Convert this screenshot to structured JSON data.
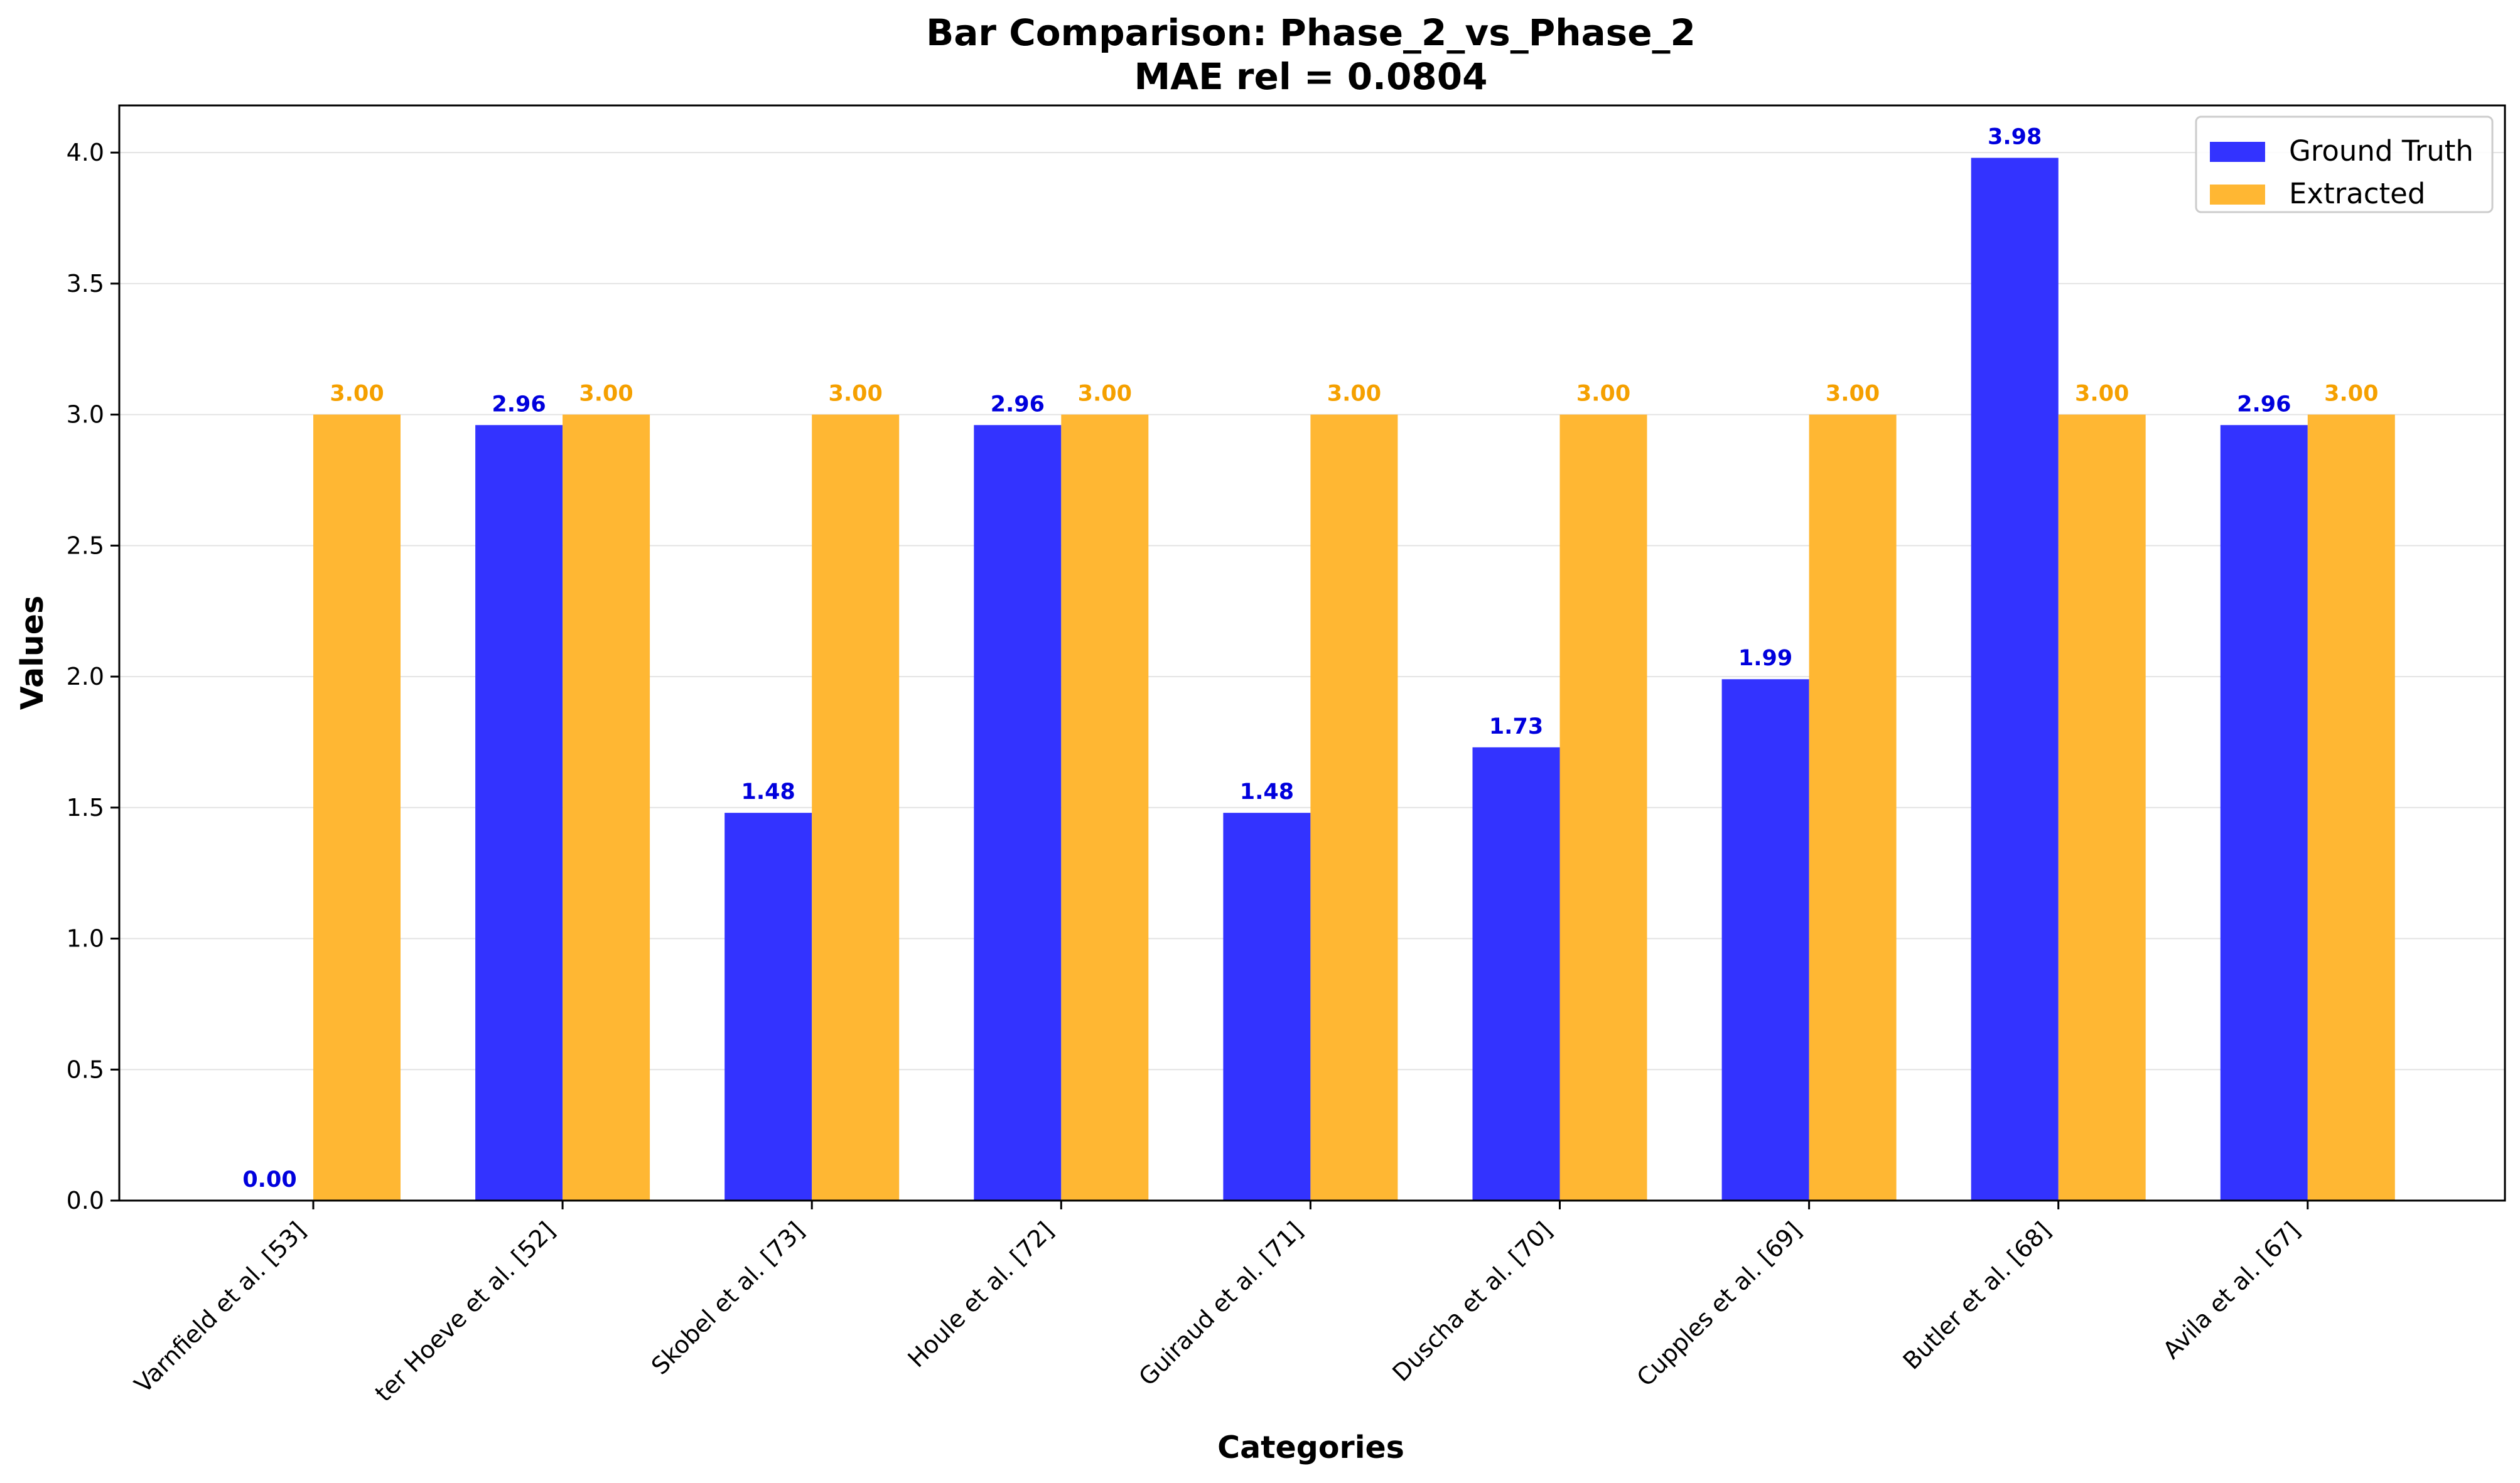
{
  "chart_data": {
    "type": "bar",
    "title": "Bar Comparison: Phase_2_vs_Phase_2",
    "subtitle": "MAE rel = 0.0804",
    "xlabel": "Categories",
    "ylabel": "Values",
    "ylim": [
      0,
      4.18
    ],
    "yticks": [
      "0.0",
      "0.5",
      "1.0",
      "1.5",
      "2.0",
      "2.5",
      "3.0",
      "3.5",
      "4.0"
    ],
    "grid": true,
    "legend_position": "top-right",
    "categories": [
      "Varnfield et al. [53]",
      "ter Hoeve et al. [52]",
      "Skobel et al. [73]",
      "Houle et al. [72]",
      "Guiraud et al. [71]",
      "Duscha et al. [70]",
      "Cupples et al. [69]",
      "Butler et al. [68]",
      "Avila et al. [67]"
    ],
    "series": [
      {
        "name": "Ground Truth",
        "color": "#3333ff",
        "label_color": "#0000dd",
        "values": [
          0.0,
          2.96,
          1.48,
          2.96,
          1.48,
          1.73,
          1.99,
          3.98,
          2.96
        ],
        "labels": [
          "0.00",
          "2.96",
          "1.48",
          "2.96",
          "1.48",
          "1.73",
          "1.99",
          "3.98",
          "2.96"
        ]
      },
      {
        "name": "Extracted",
        "color": "#ffb733",
        "label_color": "#f5a000",
        "values": [
          3.0,
          3.0,
          3.0,
          3.0,
          3.0,
          3.0,
          3.0,
          3.0,
          3.0
        ],
        "labels": [
          "3.00",
          "3.00",
          "3.00",
          "3.00",
          "3.00",
          "3.00",
          "3.00",
          "3.00",
          "3.00"
        ]
      }
    ]
  }
}
